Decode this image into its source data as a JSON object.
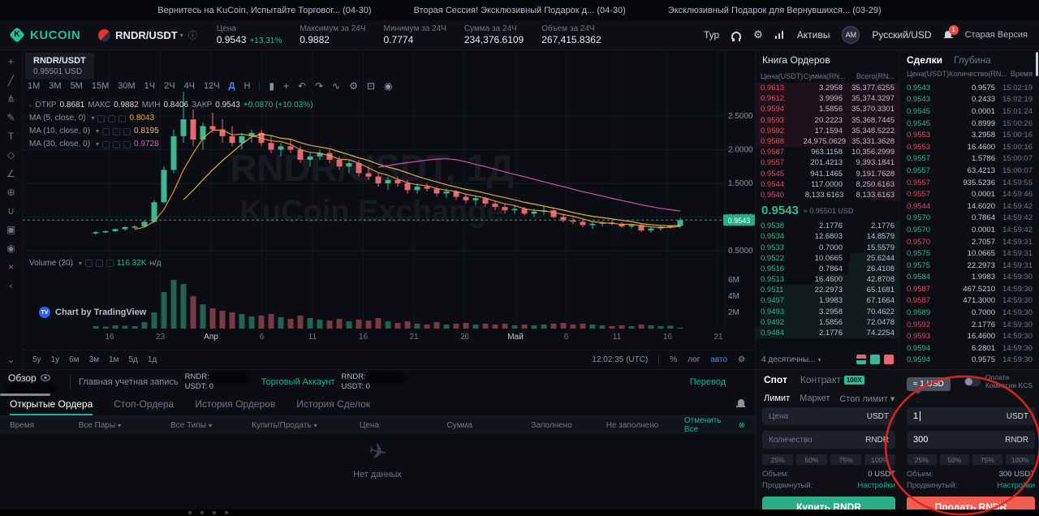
{
  "colors": {
    "accent_green": "#2ebd85",
    "accent_red": "#f6455d",
    "teal_link": "#23b193",
    "buy_button": "#2bae83",
    "sell_button": "#f25d52",
    "timeframe_active": "#4f8bf0",
    "annotation_red": "#e2231d"
  },
  "notifications": [
    {
      "label": "Вернитесь на KuCoin, Испытайте Торговог...",
      "date": "(04-30)"
    },
    {
      "label": "Вторая Сессия! Эксклюзивный Подарок д...",
      "date": "(04-30)"
    },
    {
      "label": "Эксклюзивный Подарок для Вернувшихся...",
      "date": "(03-29)"
    }
  ],
  "header": {
    "logo": "KUCOIN",
    "pair": "RNDR/USDT",
    "stats": [
      {
        "label": "Цена",
        "value": "0.9543",
        "extra": "+13.31%"
      },
      {
        "label": "Максимум за 24Ч",
        "value": "0.9882"
      },
      {
        "label": "Минимум за 24Ч",
        "value": "0.7774"
      },
      {
        "label": "Сумма за 24Ч",
        "value": "234,376.6109"
      },
      {
        "label": "Объем за 24Ч",
        "value": "267,415.8362"
      }
    ],
    "tour": "Тур",
    "assets": "Активы",
    "avatar": "AM",
    "locale": "Русский/USD",
    "bell_badge": "1",
    "old_version": "Старая Версия"
  },
  "toolbar_icons": [
    {
      "name": "crosshair-icon",
      "glyph": "+"
    },
    {
      "name": "trendline-icon",
      "glyph": "╱"
    },
    {
      "name": "pitchfork-icon",
      "glyph": "⋔"
    },
    {
      "name": "brush-icon",
      "glyph": "✎"
    },
    {
      "name": "text-tool-icon",
      "glyph": "T"
    },
    {
      "name": "shapes-icon",
      "glyph": "◇"
    },
    {
      "name": "measure-icon",
      "glyph": "∠"
    },
    {
      "name": "zoom-icon",
      "glyph": "⊕"
    },
    {
      "name": "magnet-icon",
      "glyph": "∪"
    },
    {
      "name": "lock-icon",
      "glyph": "▣"
    },
    {
      "name": "hide-drawings-icon",
      "glyph": "◉"
    },
    {
      "name": "delete-drawings-icon",
      "glyph": "×"
    },
    {
      "name": "chevron-left-icon",
      "glyph": "‹"
    },
    {
      "name": "collapse-panel-icon",
      "glyph": "⌄"
    }
  ],
  "chart": {
    "pair_label": "RNDR/USDT",
    "pair_usd": "0.95501 USD",
    "timeframes": [
      "1М",
      "3М",
      "5М",
      "15М",
      "30М",
      "1Ч",
      "2Ч",
      "4Ч",
      "12Ч",
      "Д",
      "Н"
    ],
    "active_timeframe": "Д",
    "tool_icons": [
      {
        "name": "candle-type-icon",
        "glyph": "▮"
      },
      {
        "name": "compare-icon",
        "glyph": "+"
      },
      {
        "name": "undo-icon",
        "glyph": "↶"
      },
      {
        "name": "redo-icon",
        "glyph": "↷"
      },
      {
        "name": "line-chart-icon",
        "glyph": "∿"
      },
      {
        "name": "chart-settings-icon",
        "glyph": "⚙"
      },
      {
        "name": "fullscreen-icon",
        "glyph": "⊡"
      },
      {
        "name": "camera-icon",
        "glyph": "◉"
      }
    ],
    "ohlc": {
      "open_l": "ОТКР",
      "open": "0.8681",
      "high_l": "МАКС",
      "high": "0.9882",
      "low_l": "МИН",
      "low": "0.8406",
      "close_l": "ЗАКР",
      "close": "0.9543",
      "change": "+0.0870 (+10.03%)"
    },
    "ma": [
      {
        "label": "MA (5, close, 0)",
        "value": "0.8043",
        "color": "#f5a341"
      },
      {
        "label": "MA (10, close, 0)",
        "value": "0.8195",
        "color": "#efc35b"
      },
      {
        "label": "MA (30, close, 0)",
        "value": "0.9728",
        "color": "#e55ac0"
      }
    ],
    "watermark1": "RNDR/USDT, 1Д",
    "watermark2": "KuCoin Exchange",
    "volume_legend": "Volume (20)",
    "volume_value": "116.32K",
    "volume_na": "н/д",
    "tradingview": "Chart by TradingView",
    "price_tag": "0.9543",
    "date_ticks": [
      "16",
      "23",
      "Апр",
      "6",
      "11",
      "16",
      "21",
      "26",
      "Май",
      "6",
      "11",
      "16",
      "21"
    ],
    "range_buttons": [
      "5y",
      "1y",
      "6м",
      "3м",
      "1м",
      "5д",
      "1д"
    ],
    "clock": "12:02:35 (UTC)",
    "pct": "%",
    "log": "лог",
    "auto": "авто"
  },
  "chart_data": {
    "type": "candlestick",
    "title": "RNDR/USDT 1Д",
    "ylim": [
      0.45,
      2.95
    ],
    "price_gridlines": [
      0.5,
      1.0,
      1.5,
      2.0,
      2.5
    ],
    "volume_ticks": [
      [
        6,
        "6M"
      ],
      [
        4,
        "4M"
      ],
      [
        2,
        "2M"
      ]
    ],
    "current_price": 0.9543,
    "up_color": "#3fb690",
    "down_color": "#e66673",
    "candles": [
      [
        0.76,
        0.79,
        0.74,
        0.775,
        0.3
      ],
      [
        0.775,
        0.8,
        0.76,
        0.79,
        0.25
      ],
      [
        0.79,
        0.83,
        0.78,
        0.82,
        0.4
      ],
      [
        0.82,
        0.86,
        0.8,
        0.85,
        0.35
      ],
      [
        0.85,
        0.88,
        0.83,
        0.86,
        0.3
      ],
      [
        0.86,
        0.95,
        0.85,
        0.93,
        0.8
      ],
      [
        0.93,
        1.25,
        0.92,
        1.22,
        2.0
      ],
      [
        1.22,
        1.75,
        1.2,
        1.7,
        4.5
      ],
      [
        1.7,
        2.3,
        1.65,
        2.2,
        6.0
      ],
      [
        2.2,
        2.86,
        2.1,
        2.45,
        5.5
      ],
      [
        2.45,
        2.6,
        2.05,
        2.15,
        4.0
      ],
      [
        2.15,
        2.4,
        2.0,
        2.35,
        3.0
      ],
      [
        2.35,
        2.55,
        2.25,
        2.3,
        2.5
      ],
      [
        2.3,
        2.45,
        2.1,
        2.2,
        2.2
      ],
      [
        2.2,
        2.35,
        2.05,
        2.1,
        2.0
      ],
      [
        2.1,
        2.25,
        2.0,
        2.2,
        1.8
      ],
      [
        2.2,
        2.3,
        2.1,
        2.25,
        1.5
      ],
      [
        2.25,
        2.3,
        2.05,
        2.1,
        1.6
      ],
      [
        2.1,
        2.2,
        1.95,
        2.0,
        1.8
      ],
      [
        2.0,
        2.1,
        1.9,
        2.05,
        1.4
      ],
      [
        2.05,
        2.15,
        1.95,
        2.0,
        1.2
      ],
      [
        2.0,
        2.05,
        1.8,
        1.85,
        1.6
      ],
      [
        1.85,
        1.95,
        1.75,
        1.9,
        1.3
      ],
      [
        1.9,
        2.0,
        1.85,
        1.95,
        1.1
      ],
      [
        1.95,
        2.0,
        1.8,
        1.85,
        1.0
      ],
      [
        1.85,
        1.9,
        1.7,
        1.75,
        1.2
      ],
      [
        1.75,
        1.85,
        1.65,
        1.8,
        0.9
      ],
      [
        1.8,
        1.85,
        1.6,
        1.65,
        1.1
      ],
      [
        1.65,
        1.75,
        1.55,
        1.6,
        1.0
      ],
      [
        1.6,
        1.65,
        1.45,
        1.5,
        1.3
      ],
      [
        1.5,
        1.6,
        1.4,
        1.55,
        0.9
      ],
      [
        1.55,
        1.6,
        1.45,
        1.5,
        0.7
      ],
      [
        1.5,
        1.55,
        1.35,
        1.4,
        0.9
      ],
      [
        1.4,
        1.5,
        1.35,
        1.45,
        0.6
      ],
      [
        1.45,
        1.5,
        1.38,
        1.42,
        0.5
      ],
      [
        1.42,
        1.45,
        1.3,
        1.35,
        0.8
      ],
      [
        1.35,
        1.42,
        1.28,
        1.38,
        0.5
      ],
      [
        1.38,
        1.4,
        1.25,
        1.3,
        0.6
      ],
      [
        1.3,
        1.35,
        1.2,
        1.25,
        0.7
      ],
      [
        1.25,
        1.32,
        1.18,
        1.28,
        0.5
      ],
      [
        1.28,
        1.3,
        1.15,
        1.2,
        0.6
      ],
      [
        1.2,
        1.25,
        1.1,
        1.15,
        0.5
      ],
      [
        1.15,
        1.2,
        1.05,
        1.1,
        0.6
      ],
      [
        1.1,
        1.18,
        1.05,
        1.12,
        0.4
      ],
      [
        1.12,
        1.15,
        1.02,
        1.05,
        0.5
      ],
      [
        1.05,
        1.12,
        1.0,
        1.08,
        0.4
      ],
      [
        1.08,
        1.15,
        1.03,
        1.1,
        0.5
      ],
      [
        1.1,
        1.12,
        0.98,
        1.0,
        0.6
      ],
      [
        1.0,
        1.05,
        0.92,
        0.95,
        0.7
      ],
      [
        0.95,
        1.0,
        0.9,
        0.93,
        0.5
      ],
      [
        0.93,
        0.97,
        0.85,
        0.88,
        0.6
      ],
      [
        0.88,
        0.93,
        0.82,
        0.9,
        0.5
      ],
      [
        0.9,
        0.94,
        0.86,
        0.92,
        0.4
      ],
      [
        0.92,
        0.95,
        0.88,
        0.9,
        0.3
      ],
      [
        0.9,
        0.92,
        0.84,
        0.86,
        0.4
      ],
      [
        0.86,
        0.9,
        0.83,
        0.88,
        0.3
      ],
      [
        0.88,
        0.9,
        0.78,
        0.8,
        0.5
      ],
      [
        0.8,
        0.85,
        0.77,
        0.83,
        0.4
      ],
      [
        0.83,
        0.87,
        0.8,
        0.855,
        0.3
      ],
      [
        0.855,
        0.88,
        0.83,
        0.8681,
        0.35
      ],
      [
        0.8681,
        0.9882,
        0.8406,
        0.9543,
        0.12
      ]
    ]
  },
  "orderbook": {
    "title": "Книга Ордеров",
    "columns": [
      "Цена(USDT)",
      "Сумма(RN...",
      "Всего(RN..."
    ],
    "asks": [
      [
        "0.9613",
        "3.2958",
        "35,377.6255"
      ],
      [
        "0.9612",
        "3.9996",
        "35,374.3297"
      ],
      [
        "0.9594",
        "1.5856",
        "35,370.3301"
      ],
      [
        "0.9593",
        "20.2223",
        "35,368.7445"
      ],
      [
        "0.9592",
        "17.1594",
        "35,348.5222"
      ],
      [
        "0.9588",
        "24,975.0629",
        "35,331.3628"
      ],
      [
        "0.9587",
        "963.1158",
        "10,356.2999"
      ],
      [
        "0.9557",
        "201.4213",
        "9,393.1841"
      ],
      [
        "0.9545",
        "941.1465",
        "9,191.7628"
      ],
      [
        "0.9544",
        "117.0000",
        "8,250.6163"
      ],
      [
        "0.9540",
        "8,133.6163",
        "8,133.6163"
      ]
    ],
    "mid_price": "0.9543",
    "mid_approx": "≈ 0.95501 USD",
    "bids": [
      [
        "0.9538",
        "2.1776",
        "2.1776"
      ],
      [
        "0.9534",
        "12.6803",
        "14.8579"
      ],
      [
        "0.9533",
        "0.7000",
        "15.5579"
      ],
      [
        "0.9522",
        "10.0665",
        "25.6244"
      ],
      [
        "0.9516",
        "0.7864",
        "26.4108"
      ],
      [
        "0.9513",
        "16.4600",
        "42.8708"
      ],
      [
        "0.9511",
        "22.2973",
        "65.1681"
      ],
      [
        "0.9497",
        "1.9983",
        "67.1664"
      ],
      [
        "0.9493",
        "3.2958",
        "70.4622"
      ],
      [
        "0.9492",
        "1.5856",
        "72.0478"
      ],
      [
        "0.9484",
        "2.1776",
        "74.2254"
      ]
    ],
    "precision": "4 десятичны..."
  },
  "trades": {
    "tabs": [
      "Сделки",
      "Глубина"
    ],
    "columns": [
      "Цена(USDT)",
      "Количество(RN...",
      "Время"
    ],
    "rows": [
      [
        "0.9543",
        "0.9575",
        "15:02:19",
        "up"
      ],
      [
        "0.9543",
        "0.2433",
        "15:02:19",
        "up"
      ],
      [
        "0.9545",
        "0.0001",
        "15:01:24",
        "up"
      ],
      [
        "0.9545",
        "0.8999",
        "15:00:26",
        "up"
      ],
      [
        "0.9553",
        "3.2958",
        "15:00:16",
        "down"
      ],
      [
        "0.9553",
        "16.4600",
        "15:00:16",
        "down"
      ],
      [
        "0.9557",
        "1.5786",
        "15:00:07",
        "up"
      ],
      [
        "0.9557",
        "63.4213",
        "15:00:07",
        "up"
      ],
      [
        "0.9557",
        "935.5236",
        "14:59:55",
        "down"
      ],
      [
        "0.9557",
        "0.0001",
        "14:59:46",
        "down"
      ],
      [
        "0.9544",
        "14.6020",
        "14:59:42",
        "down"
      ],
      [
        "0.9570",
        "0.7864",
        "14:59:42",
        "up"
      ],
      [
        "0.9570",
        "0.0001",
        "14:59:42",
        "up"
      ],
      [
        "0.9570",
        "2.7057",
        "14:59:31",
        "down"
      ],
      [
        "0.9575",
        "10.0665",
        "14:59:31",
        "up"
      ],
      [
        "0.9575",
        "22.2973",
        "14:59:31",
        "up"
      ],
      [
        "0.9584",
        "1.9983",
        "14:59:30",
        "up"
      ],
      [
        "0.9587",
        "467.5210",
        "14:59:30",
        "down"
      ],
      [
        "0.9587",
        "471.3000",
        "14:59:30",
        "down"
      ],
      [
        "0.9589",
        "0.7000",
        "14:59:30",
        "up"
      ],
      [
        "0.9592",
        "2.1776",
        "14:59:30",
        "down"
      ],
      [
        "0.9593",
        "16.4600",
        "14:59:30",
        "down"
      ],
      [
        "0.9594",
        "6.2801",
        "14:59:30",
        "up"
      ],
      [
        "0.9594",
        "0.9575",
        "14:59:30",
        "up"
      ]
    ]
  },
  "account": {
    "overview": "Обзор",
    "main_account": "Главная учетная запись",
    "main_rndr": "RNDR:",
    "main_usdt": "USDT: 0",
    "trade_account": "Торговый Аккаунт",
    "trade_rndr": "RNDR:",
    "trade_usdt": "USDT: 0",
    "transfer": "Перевод"
  },
  "orders": {
    "tabs": [
      "Открытые Ордера",
      "Стоп-Ордера",
      "История Ордеров",
      "История Сделок"
    ],
    "headers": [
      "Время",
      "Все Пары",
      "Все Типы",
      "Купить/Продать",
      "Цена",
      "Сумма",
      "Заполнено",
      "Не заполнено"
    ],
    "cancel_all": "Отменить Все",
    "empty": "Нет данных"
  },
  "panel": {
    "spot": "Спот",
    "futures": "Контракт",
    "leverage": "100X",
    "fee1": "Оплата",
    "fee2": "Комиссии KCS",
    "subtabs": [
      "Лимит",
      "Маркет",
      "Стоп лимит"
    ],
    "tooltip": "≈ 1 USD",
    "buy": {
      "price_label": "Цена",
      "price_unit": "USDT",
      "qty_label": "Количество",
      "qty_unit": "RNDR",
      "percents": [
        "25%",
        "50%",
        "75%",
        "100%"
      ],
      "vol_label": "Объем:",
      "vol_value": "0 USDT",
      "adv_label": "Продвинутый:",
      "adv_value": "Настройки",
      "button": "Купить RNDR"
    },
    "sell": {
      "price_value": "1",
      "price_unit": "USDT",
      "qty_value": "300",
      "qty_unit": "RNDR",
      "percents": [
        "25%",
        "50%",
        "75%",
        "100%"
      ],
      "vol_label": "Объем:",
      "vol_value": "300 USDT",
      "adv_label": "Продвинутый:",
      "adv_value": "Настройки",
      "button": "Продать RNDR"
    }
  }
}
